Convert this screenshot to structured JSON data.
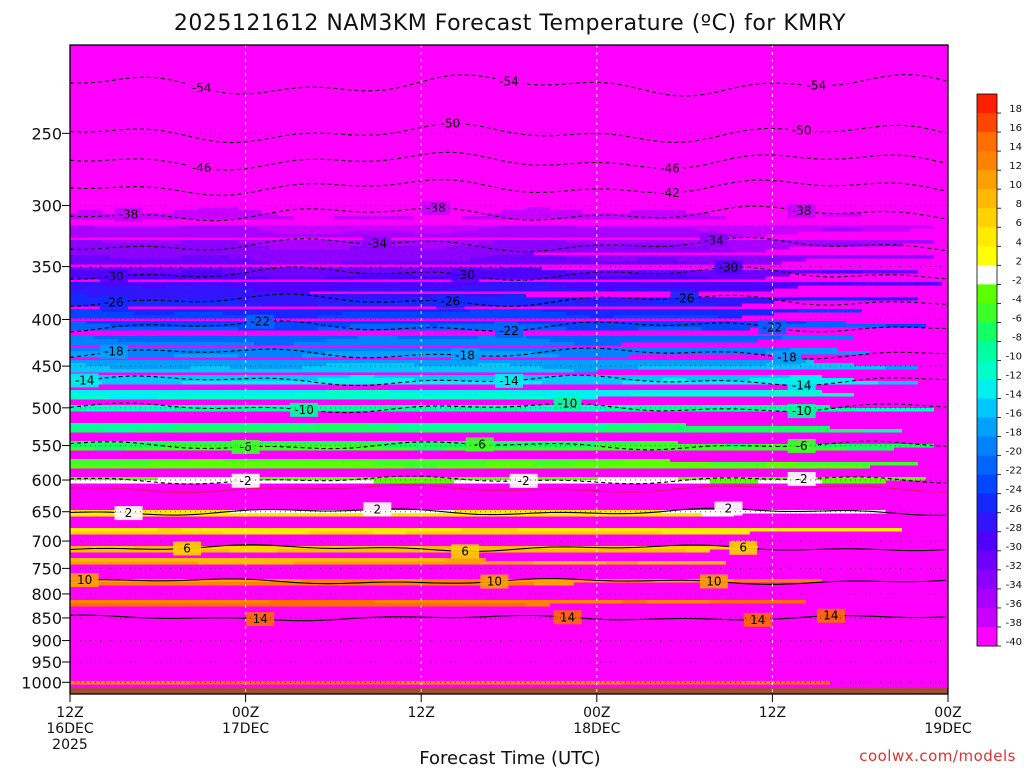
{
  "chart_data": {
    "type": "heatmap",
    "title": "2025121612 NAM3KM Forecast Temperature (ºC) for KMRY",
    "xlabel": "Forecast Time (UTC)",
    "ylabel": "",
    "credit": "coolwx.com/models",
    "x_ticks": [
      {
        "hour": 0,
        "line1": "12Z",
        "line2": "16DEC",
        "line3": "2025"
      },
      {
        "hour": 12,
        "line1": "00Z",
        "line2": "17DEC",
        "line3": ""
      },
      {
        "hour": 24,
        "line1": "12Z",
        "line2": "",
        "line3": ""
      },
      {
        "hour": 36,
        "line1": "00Z",
        "line2": "18DEC",
        "line3": ""
      },
      {
        "hour": 48,
        "line1": "12Z",
        "line2": "",
        "line3": ""
      },
      {
        "hour": 60,
        "line1": "00Z",
        "line2": "19DEC",
        "line3": ""
      }
    ],
    "xlim": [
      0,
      60
    ],
    "y_ticks": [
      {
        "p": 250,
        "label": "250"
      },
      {
        "p": 300,
        "label": "300"
      },
      {
        "p": 350,
        "label": "350"
      },
      {
        "p": 400,
        "label": "400"
      },
      {
        "p": 450,
        "label": "450"
      },
      {
        "p": 500,
        "label": "500"
      },
      {
        "p": 550,
        "label": "550"
      },
      {
        "p": 600,
        "label": "600"
      },
      {
        "p": 650,
        "label": "650"
      },
      {
        "p": 700,
        "label": "700"
      },
      {
        "p": 750,
        "label": "750"
      },
      {
        "p": 800,
        "label": "800"
      },
      {
        "p": 850,
        "label": "850"
      },
      {
        "p": 900,
        "label": "900"
      },
      {
        "p": 950,
        "label": "950"
      },
      {
        "p": 1000,
        "label": "1000"
      }
    ],
    "ylim_hpa": [
      200,
      1030
    ],
    "surface_hpa": 1015,
    "colorbar": {
      "levels": [
        {
          "label": "18",
          "color": "#ff1e00"
        },
        {
          "label": "16",
          "color": "#ff4600"
        },
        {
          "label": "14",
          "color": "#ff6e00"
        },
        {
          "label": "12",
          "color": "#ff8200"
        },
        {
          "label": "10",
          "color": "#ffa000"
        },
        {
          "label": "8",
          "color": "#ffb900"
        },
        {
          "label": "6",
          "color": "#ffd200"
        },
        {
          "label": "4",
          "color": "#ffeb00"
        },
        {
          "label": "2",
          "color": "#ffff00"
        },
        {
          "label": "-2",
          "color": "#ffffff"
        },
        {
          "label": "-4",
          "color": "#5aff00"
        },
        {
          "label": "-6",
          "color": "#3cff28"
        },
        {
          "label": "-8",
          "color": "#14ff64"
        },
        {
          "label": "-10",
          "color": "#00ffa0"
        },
        {
          "label": "-12",
          "color": "#00ffc8"
        },
        {
          "label": "-14",
          "color": "#00f0f0"
        },
        {
          "label": "-16",
          "color": "#00c8ff"
        },
        {
          "label": "-18",
          "color": "#00a0ff"
        },
        {
          "label": "-20",
          "color": "#0082ff"
        },
        {
          "label": "-22",
          "color": "#0064ff"
        },
        {
          "label": "-24",
          "color": "#0046ff"
        },
        {
          "label": "-26",
          "color": "#1428ff"
        },
        {
          "label": "-28",
          "color": "#3214ff"
        },
        {
          "label": "-30",
          "color": "#5000ff"
        },
        {
          "label": "-32",
          "color": "#6e00ff"
        },
        {
          "label": "-34",
          "color": "#8c00ff"
        },
        {
          "label": "-36",
          "color": "#aa00ff"
        },
        {
          "label": "-38",
          "color": "#c800ff"
        },
        {
          "label": "-40",
          "color": "#ff00ff"
        }
      ]
    },
    "temperature_profile": {
      "pressure_hpa": [
        200,
        250,
        300,
        350,
        400,
        450,
        500,
        550,
        600,
        620,
        650,
        700,
        750,
        800,
        850,
        900,
        950,
        980,
        1000
      ],
      "temp_c": [
        -57,
        -50,
        -39,
        -31,
        -23,
        -16,
        -10,
        -6,
        -2,
        1,
        2,
        5,
        9,
        11,
        14,
        14,
        14,
        13,
        12
      ]
    },
    "contours": [
      {
        "value": -54,
        "label": "-54",
        "style": "dashed",
        "label_hours": [
          9,
          30,
          51
        ]
      },
      {
        "value": -50,
        "label": "-50",
        "style": "dashed",
        "label_hours": [
          26,
          50
        ]
      },
      {
        "value": -46,
        "label": "-46",
        "style": "dashed",
        "label_hours": [
          9,
          41
        ]
      },
      {
        "value": -42,
        "label": "-42",
        "style": "dashed",
        "label_hours": [
          41
        ]
      },
      {
        "value": -38,
        "label": "-38",
        "style": "dashed",
        "label_hours": [
          4,
          25,
          50
        ]
      },
      {
        "value": -34,
        "label": "-34",
        "style": "dashed",
        "label_hours": [
          21,
          44
        ]
      },
      {
        "value": -30,
        "label": "-30",
        "style": "dashed",
        "label_hours": [
          3,
          27,
          45
        ]
      },
      {
        "value": -26,
        "label": "-26",
        "style": "dashed",
        "label_hours": [
          3,
          26,
          42
        ]
      },
      {
        "value": -22,
        "label": "-22",
        "style": "dashed",
        "label_hours": [
          13,
          30,
          48
        ]
      },
      {
        "value": -18,
        "label": "-18",
        "style": "dashed",
        "label_hours": [
          3,
          27,
          49
        ]
      },
      {
        "value": -14,
        "label": "-14",
        "style": "dashed",
        "label_hours": [
          1,
          30,
          50
        ]
      },
      {
        "value": -10,
        "label": "-10",
        "style": "dashed",
        "label_hours": [
          16,
          34,
          50
        ]
      },
      {
        "value": -6,
        "label": "-6",
        "style": "dashed",
        "label_hours": [
          12,
          28,
          50
        ]
      },
      {
        "value": -2,
        "label": "-2",
        "style": "dashed",
        "label_hours": [
          12,
          31,
          50
        ]
      },
      {
        "value": 2,
        "label": "2",
        "style": "solid",
        "label_hours": [
          4,
          21,
          45
        ]
      },
      {
        "value": 6,
        "label": "6",
        "style": "solid",
        "label_hours": [
          8,
          27,
          46
        ]
      },
      {
        "value": 10,
        "label": "10",
        "style": "solid",
        "label_hours": [
          1,
          29,
          44
        ]
      },
      {
        "value": 14,
        "label": "14",
        "style": "solid",
        "label_hours": [
          13,
          34,
          47,
          52
        ]
      }
    ],
    "zero_line": {
      "value": 0,
      "color": "#e0147a",
      "style": "solid"
    }
  }
}
